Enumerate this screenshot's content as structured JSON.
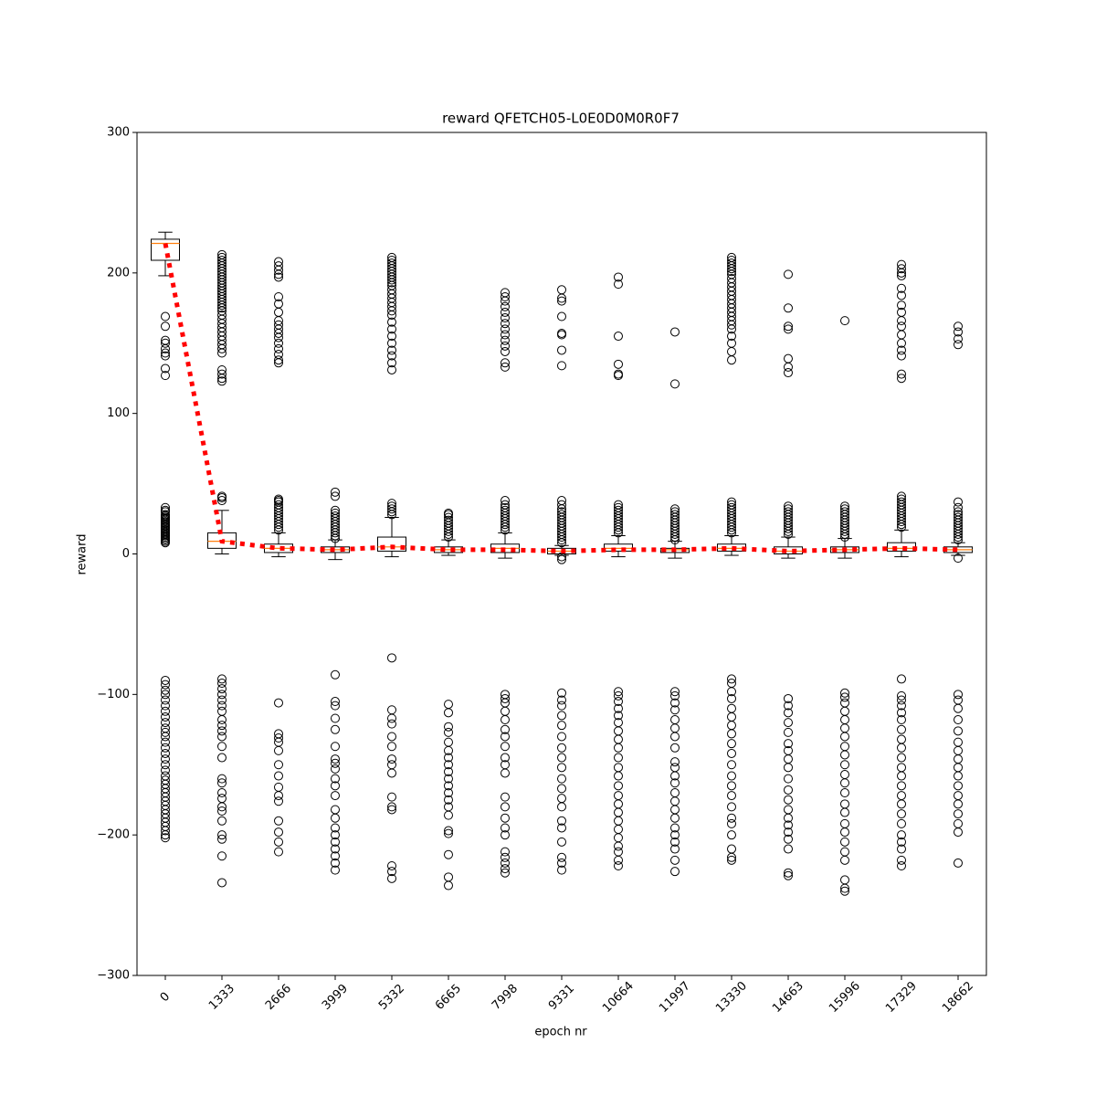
{
  "chart_data": {
    "type": "box",
    "title": "reward QFETCH05-L0E0D0M0R0F7",
    "x_label": "epoch nr",
    "y_label": "reward",
    "ylim": [
      -300,
      300
    ],
    "yticks": [
      {
        "value": -300,
        "label": "−300"
      },
      {
        "value": -200,
        "label": "−200"
      },
      {
        "value": -100,
        "label": "−100"
      },
      0,
      100,
      200,
      300
    ],
    "categories": [
      "0",
      "1333",
      "2666",
      "3999",
      "5332",
      "6665",
      "7998",
      "9331",
      "10664",
      "11997",
      "13330",
      "14663",
      "15996",
      "17329",
      "18662"
    ],
    "box_color": "#000000",
    "median_color": "#ff7f0e",
    "boxes": [
      {
        "whislo": 198,
        "q1": 209,
        "med": 221,
        "q3": 224,
        "whishi": 229,
        "fliers": [
          169,
          162,
          152,
          150,
          146,
          143,
          141,
          132,
          127,
          33,
          31,
          30,
          28,
          27,
          26,
          25,
          24,
          23,
          22,
          21,
          20,
          19,
          18,
          17,
          16,
          15,
          14,
          13,
          12,
          11,
          10,
          9,
          8,
          -90,
          -93,
          -97,
          -100,
          -104,
          -108,
          -112,
          -116,
          -120,
          -124,
          -127,
          -130,
          -134,
          -138,
          -142,
          -146,
          -150,
          -154,
          -158,
          -161,
          -164,
          -167,
          -170,
          -173,
          -176,
          -179,
          -182,
          -185,
          -188,
          -191,
          -194,
          -197,
          -200,
          -202
        ]
      },
      {
        "whislo": 0,
        "q1": 4,
        "med": 9,
        "q3": 15,
        "whishi": 31,
        "fliers": [
          41,
          40,
          38,
          213,
          211,
          209,
          207,
          205,
          203,
          201,
          199,
          197,
          195,
          193,
          191,
          189,
          187,
          185,
          183,
          181,
          179,
          177,
          175,
          173,
          170,
          167,
          164,
          161,
          158,
          155,
          152,
          149,
          146,
          143,
          131,
          128,
          125,
          123,
          -89,
          -92,
          -96,
          -100,
          -104,
          -108,
          -112,
          -118,
          -122,
          -126,
          -130,
          -137,
          -145,
          -160,
          -163,
          -170,
          -174,
          -180,
          -183,
          -190,
          -200,
          -203,
          -215,
          -234
        ]
      },
      {
        "whislo": -2,
        "q1": 1,
        "med": 4,
        "q3": 7,
        "whishi": 15,
        "fliers": [
          208,
          205,
          202,
          199,
          197,
          183,
          178,
          172,
          166,
          163,
          160,
          157,
          154,
          150,
          146,
          142,
          138,
          136,
          39,
          38,
          37,
          35,
          33,
          31,
          29,
          27,
          25,
          23,
          21,
          19,
          17,
          -106,
          -128,
          -131,
          -134,
          -140,
          -150,
          -158,
          -166,
          -172,
          -176,
          -190,
          -198,
          -205,
          -212
        ]
      },
      {
        "whislo": -4,
        "q1": 1,
        "med": 3,
        "q3": 5,
        "whishi": 10,
        "fliers": [
          44,
          41,
          31,
          29,
          27,
          25,
          23,
          21,
          19,
          17,
          15,
          13,
          11,
          -86,
          -105,
          -108,
          -117,
          -125,
          -137,
          -146,
          -149,
          -153,
          -160,
          -165,
          -172,
          -182,
          -188,
          -195,
          -200,
          -205,
          -210,
          -215,
          -220,
          -225
        ]
      },
      {
        "whislo": -2,
        "q1": 2,
        "med": 5,
        "q3": 12,
        "whishi": 26,
        "fliers": [
          211,
          209,
          207,
          205,
          203,
          201,
          199,
          197,
          195,
          193,
          191,
          188,
          185,
          182,
          179,
          176,
          173,
          170,
          165,
          160,
          155,
          150,
          145,
          141,
          136,
          131,
          36,
          34,
          32,
          30,
          28,
          -74,
          -111,
          -117,
          -121,
          -130,
          -137,
          -146,
          -150,
          -156,
          -173,
          -180,
          -182,
          -222,
          -226,
          -231
        ]
      },
      {
        "whislo": -1,
        "q1": 1,
        "med": 3,
        "q3": 5,
        "whishi": 10,
        "fliers": [
          29,
          28,
          26,
          24,
          22,
          20,
          18,
          16,
          14,
          12,
          -107,
          -113,
          -123,
          -127,
          -134,
          -140,
          -145,
          -150,
          -155,
          -160,
          -165,
          -170,
          -175,
          -180,
          -186,
          -197,
          -199,
          -214,
          -230,
          -236
        ]
      },
      {
        "whislo": -3,
        "q1": 1,
        "med": 4,
        "q3": 7,
        "whishi": 15,
        "fliers": [
          186,
          183,
          180,
          176,
          172,
          168,
          164,
          160,
          156,
          152,
          148,
          144,
          136,
          133,
          38,
          35,
          33,
          31,
          29,
          27,
          25,
          23,
          21,
          19,
          17,
          -100,
          -103,
          -106,
          -112,
          -118,
          -125,
          -130,
          -137,
          -145,
          -150,
          -156,
          -173,
          -180,
          -188,
          -195,
          -200,
          -212,
          -216,
          -220,
          -224,
          -227
        ]
      },
      {
        "whislo": -1,
        "q1": 0,
        "med": 2,
        "q3": 4,
        "whishi": 6,
        "fliers": [
          188,
          182,
          180,
          169,
          157,
          156,
          145,
          134,
          38,
          35,
          32,
          30,
          28,
          26,
          24,
          22,
          20,
          18,
          16,
          14,
          12,
          10,
          8,
          -2,
          -4,
          -99,
          -104,
          -108,
          -115,
          -122,
          -130,
          -138,
          -145,
          -152,
          -160,
          -167,
          -174,
          -180,
          -190,
          -195,
          -205,
          -216,
          -220,
          -225
        ]
      },
      {
        "whislo": -2,
        "q1": 2,
        "med": 4,
        "q3": 7,
        "whishi": 13,
        "fliers": [
          197,
          192,
          155,
          135,
          128,
          127,
          35,
          33,
          31,
          29,
          27,
          25,
          23,
          21,
          19,
          17,
          15,
          -98,
          -101,
          -105,
          -110,
          -115,
          -120,
          -126,
          -132,
          -138,
          -145,
          -152,
          -158,
          -165,
          -172,
          -178,
          -184,
          -190,
          -196,
          -202,
          -208,
          -212,
          -218,
          -222
        ]
      },
      {
        "whislo": -3,
        "q1": 1,
        "med": 3,
        "q3": 4,
        "whishi": 9,
        "fliers": [
          158,
          121,
          32,
          30,
          28,
          26,
          24,
          22,
          20,
          18,
          16,
          14,
          12,
          10,
          -98,
          -101,
          -106,
          -111,
          -118,
          -124,
          -130,
          -138,
          -148,
          -152,
          -158,
          -163,
          -170,
          -176,
          -182,
          -188,
          -195,
          -200,
          -205,
          -210,
          -218,
          -226
        ]
      },
      {
        "whislo": -1,
        "q1": 2,
        "med": 4,
        "q3": 7,
        "whishi": 13,
        "fliers": [
          211,
          209,
          207,
          205,
          203,
          201,
          199,
          196,
          193,
          190,
          187,
          184,
          181,
          178,
          175,
          172,
          169,
          166,
          163,
          160,
          155,
          150,
          144,
          138,
          37,
          35,
          33,
          31,
          29,
          27,
          25,
          23,
          21,
          19,
          17,
          15,
          -89,
          -92,
          -98,
          -103,
          -110,
          -116,
          -122,
          -128,
          -135,
          -142,
          -150,
          -158,
          -165,
          -172,
          -180,
          -188,
          -192,
          -200,
          -210,
          -216,
          -218
        ]
      },
      {
        "whislo": -3,
        "q1": 0,
        "med": 2,
        "q3": 5,
        "whishi": 12,
        "fliers": [
          199,
          175,
          162,
          160,
          139,
          133,
          129,
          34,
          32,
          30,
          28,
          26,
          24,
          22,
          20,
          18,
          16,
          14,
          -103,
          -108,
          -113,
          -120,
          -127,
          -135,
          -140,
          -146,
          -152,
          -160,
          -168,
          -175,
          -182,
          -188,
          -193,
          -198,
          -203,
          -210,
          -227,
          -229
        ]
      },
      {
        "whislo": -3,
        "q1": 1,
        "med": 3,
        "q3": 5,
        "whishi": 11,
        "fliers": [
          166,
          34,
          32,
          30,
          28,
          26,
          24,
          22,
          20,
          18,
          16,
          14,
          12,
          -99,
          -102,
          -106,
          -112,
          -118,
          -124,
          -130,
          -137,
          -143,
          -150,
          -157,
          -163,
          -170,
          -178,
          -184,
          -192,
          -198,
          -205,
          -212,
          -218,
          -232,
          -238,
          -240
        ]
      },
      {
        "whislo": -2,
        "q1": 2,
        "med": 4,
        "q3": 8,
        "whishi": 17,
        "fliers": [
          206,
          203,
          200,
          198,
          189,
          184,
          177,
          172,
          166,
          162,
          156,
          150,
          145,
          141,
          128,
          125,
          41,
          39,
          37,
          35,
          33,
          31,
          29,
          27,
          25,
          23,
          21,
          19,
          -89,
          -101,
          -104,
          -108,
          -113,
          -118,
          -125,
          -132,
          -138,
          -145,
          -152,
          -158,
          -165,
          -172,
          -178,
          -185,
          -192,
          -200,
          -205,
          -210,
          -218,
          -222
        ]
      },
      {
        "whislo": -1,
        "q1": 1,
        "med": 3,
        "q3": 5,
        "whishi": 8,
        "fliers": [
          162,
          158,
          153,
          149,
          37,
          33,
          30,
          28,
          26,
          24,
          22,
          20,
          18,
          16,
          14,
          12,
          10,
          -3,
          -100,
          -104,
          -110,
          -118,
          -126,
          -134,
          -140,
          -146,
          -152,
          -158,
          -165,
          -172,
          -178,
          -185,
          -192,
          -198,
          -220
        ]
      }
    ],
    "mean_line": {
      "color": "#ff0000",
      "values": [
        221,
        9,
        4,
        3,
        5,
        3,
        3,
        2,
        3,
        3,
        4,
        2,
        3,
        4,
        3
      ]
    }
  }
}
